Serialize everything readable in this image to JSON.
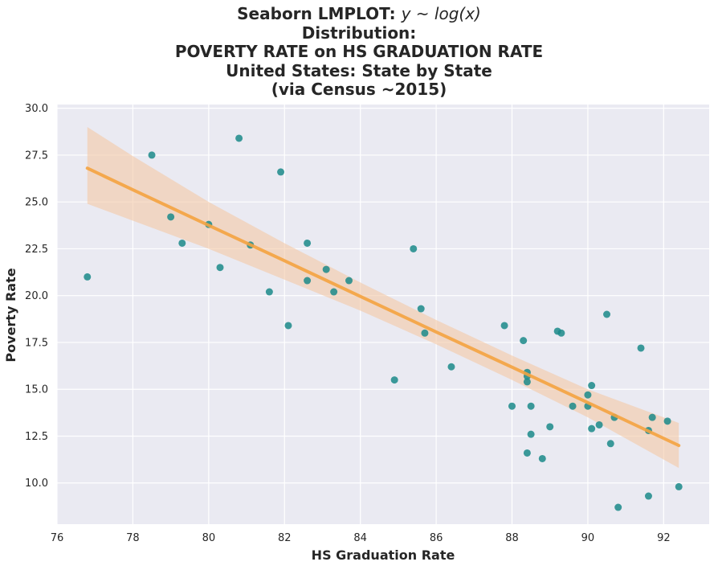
{
  "title": {
    "line1_prefix": "Seaborn LMPLOT: ",
    "line1_math": "y ~ log(x)",
    "line2": "Distribution:",
    "line3": "POVERTY RATE on HS GRADUATION RATE",
    "line4": "United States: State by State",
    "line5": "(via Census ~2015)"
  },
  "chart_data": {
    "type": "scatter",
    "title": "Seaborn LMPLOT: y ~ log(x) Distribution: POVERTY RATE on HS GRADUATION RATE United States: State by State (via Census ~2015)",
    "xlabel": "HS Graduation Rate",
    "ylabel": "Poverty Rate",
    "xlim": [
      76,
      93.2
    ],
    "ylim": [
      7.8,
      30.2
    ],
    "xticks": [
      76,
      78,
      80,
      82,
      84,
      86,
      88,
      90,
      92
    ],
    "yticks": [
      10.0,
      12.5,
      15.0,
      17.5,
      20.0,
      22.5,
      25.0,
      27.5,
      30.0
    ],
    "xtick_labels": [
      "76",
      "78",
      "80",
      "82",
      "84",
      "86",
      "88",
      "90",
      "92"
    ],
    "ytick_labels": [
      "10.0",
      "12.5",
      "15.0",
      "17.5",
      "20.0",
      "22.5",
      "25.0",
      "27.5",
      "30.0"
    ],
    "grid": true,
    "points": [
      {
        "x": 76.8,
        "y": 21.0
      },
      {
        "x": 78.5,
        "y": 27.5
      },
      {
        "x": 79.0,
        "y": 24.2
      },
      {
        "x": 79.3,
        "y": 22.8
      },
      {
        "x": 80.0,
        "y": 23.8
      },
      {
        "x": 80.3,
        "y": 21.5
      },
      {
        "x": 80.8,
        "y": 28.4
      },
      {
        "x": 81.1,
        "y": 22.7
      },
      {
        "x": 81.6,
        "y": 20.2
      },
      {
        "x": 81.9,
        "y": 26.6
      },
      {
        "x": 82.1,
        "y": 18.4
      },
      {
        "x": 82.6,
        "y": 22.8
      },
      {
        "x": 82.6,
        "y": 20.8
      },
      {
        "x": 83.1,
        "y": 21.4
      },
      {
        "x": 83.3,
        "y": 20.2
      },
      {
        "x": 83.7,
        "y": 20.8
      },
      {
        "x": 84.9,
        "y": 15.5
      },
      {
        "x": 85.4,
        "y": 22.5
      },
      {
        "x": 85.6,
        "y": 19.3
      },
      {
        "x": 85.7,
        "y": 18.0
      },
      {
        "x": 86.4,
        "y": 16.2
      },
      {
        "x": 87.8,
        "y": 18.4
      },
      {
        "x": 88.0,
        "y": 14.1
      },
      {
        "x": 88.3,
        "y": 17.6
      },
      {
        "x": 88.4,
        "y": 15.9
      },
      {
        "x": 88.4,
        "y": 15.4
      },
      {
        "x": 88.4,
        "y": 15.7
      },
      {
        "x": 88.4,
        "y": 11.6
      },
      {
        "x": 88.5,
        "y": 14.1
      },
      {
        "x": 88.5,
        "y": 12.6
      },
      {
        "x": 88.8,
        "y": 11.3
      },
      {
        "x": 89.0,
        "y": 13.0
      },
      {
        "x": 89.2,
        "y": 18.1
      },
      {
        "x": 89.3,
        "y": 18.0
      },
      {
        "x": 89.6,
        "y": 14.1
      },
      {
        "x": 90.0,
        "y": 14.7
      },
      {
        "x": 90.0,
        "y": 14.1
      },
      {
        "x": 90.1,
        "y": 15.2
      },
      {
        "x": 90.1,
        "y": 12.9
      },
      {
        "x": 90.3,
        "y": 13.1
      },
      {
        "x": 90.5,
        "y": 19.0
      },
      {
        "x": 90.6,
        "y": 12.1
      },
      {
        "x": 90.7,
        "y": 13.5
      },
      {
        "x": 90.8,
        "y": 8.7
      },
      {
        "x": 91.4,
        "y": 17.2
      },
      {
        "x": 91.6,
        "y": 9.3
      },
      {
        "x": 91.6,
        "y": 12.8
      },
      {
        "x": 91.7,
        "y": 13.5
      },
      {
        "x": 92.1,
        "y": 13.3
      },
      {
        "x": 92.4,
        "y": 9.8
      }
    ],
    "regression_line": {
      "x": [
        76.8,
        78,
        80,
        82,
        84,
        86,
        88,
        90,
        92.4
      ],
      "y": [
        26.8,
        25.65,
        23.75,
        21.86,
        19.96,
        18.06,
        16.18,
        14.29,
        12.0
      ]
    },
    "confidence_band": {
      "x": [
        76.8,
        78,
        80,
        82,
        84,
        86,
        88,
        90,
        92.4
      ],
      "upper": [
        29.0,
        27.45,
        25.0,
        22.8,
        20.7,
        18.7,
        16.8,
        15.0,
        13.2
      ],
      "lower": [
        24.9,
        24.0,
        22.5,
        20.85,
        19.2,
        17.4,
        15.5,
        13.5,
        10.8
      ]
    },
    "colors": {
      "points": "#1b8a8a",
      "line": "#f4a340",
      "band": "#f3c8a5",
      "plot_background": "#eaeaf2",
      "grid": "#ffffff"
    }
  }
}
